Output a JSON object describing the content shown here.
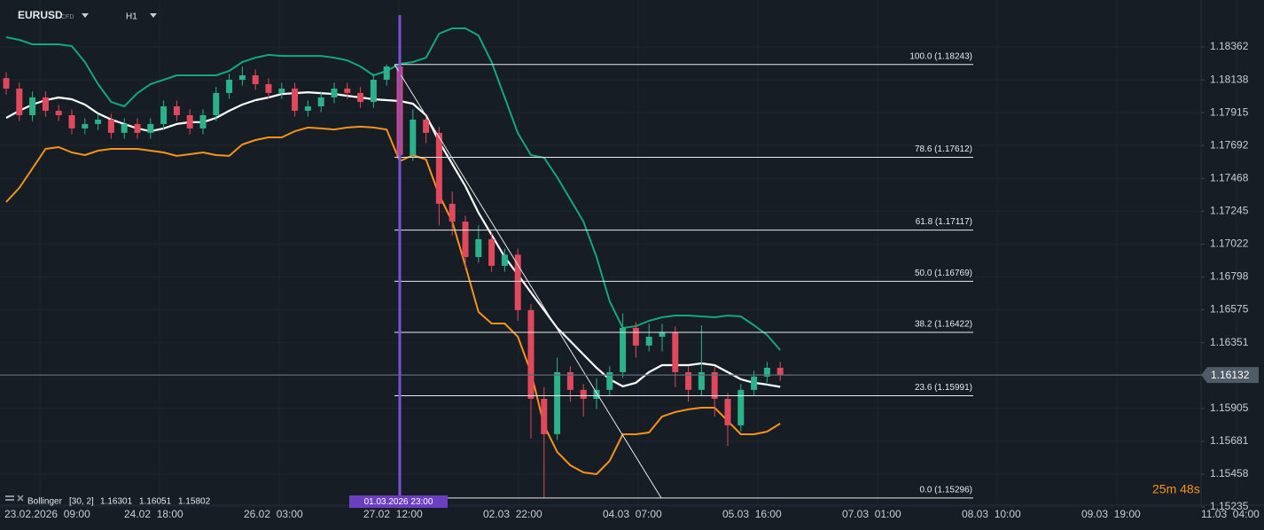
{
  "chart_data": {
    "type": "candlestick",
    "symbol": "EURUSD",
    "instrument_type": "CFD",
    "timeframe": "H1",
    "up_color": "#2bb28a",
    "down_color": "#e0485c",
    "open": [
      1.1815,
      1.18079,
      1.17898,
      1.18019,
      1.17928,
      1.17898,
      1.17808,
      1.17838,
      1.17868,
      1.17778,
      1.17838,
      1.17778,
      1.17838,
      1.17958,
      1.17898,
      1.17808,
      1.17898,
      1.18049,
      1.18139,
      1.18169,
      1.18109,
      1.18049,
      1.18079,
      1.17928,
      1.17958,
      1.18019,
      1.18079,
      1.18049,
      1.17988,
      1.18139,
      1.18229,
      1.17627,
      1.17868,
      1.17778,
      1.17296,
      1.17175,
      1.16934,
      1.17055,
      1.16874,
      1.1695,
      1.16573,
      1.1597,
      1.1573,
      1.16151,
      1.16031,
      1.1597,
      1.16031,
      1.16151,
      1.16452,
      1.16332,
      1.16392,
      1.16422,
      1.16151,
      1.16031,
      1.16151,
      1.1597,
      1.1579,
      1.16031,
      1.16121,
      1.16181
    ],
    "high": [
      1.1819,
      1.18119,
      1.18059,
      1.18059,
      1.17968,
      1.17938,
      1.17878,
      1.17908,
      1.17908,
      1.17878,
      1.17878,
      1.17878,
      1.17998,
      1.17998,
      1.17938,
      1.17938,
      1.18089,
      1.18179,
      1.18229,
      1.18209,
      1.18149,
      1.18119,
      1.18119,
      1.17998,
      1.18059,
      1.18119,
      1.18119,
      1.18089,
      1.18179,
      1.18243,
      1.18229,
      1.17938,
      1.17908,
      1.17818,
      1.1738,
      1.17215,
      1.1715,
      1.17095,
      1.1699,
      1.1699,
      1.16613,
      1.1605,
      1.1625,
      1.16191,
      1.16071,
      1.1611,
      1.16191,
      1.1655,
      1.16492,
      1.1648,
      1.1648,
      1.16462,
      1.16191,
      1.1647,
      1.16191,
      1.1601,
      1.16071,
      1.16161,
      1.16221,
      1.16221
    ],
    "low": [
      1.18039,
      1.17858,
      1.17858,
      1.17888,
      1.17858,
      1.17768,
      1.17768,
      1.17798,
      1.17738,
      1.17738,
      1.17738,
      1.17738,
      1.17798,
      1.17858,
      1.17768,
      1.17768,
      1.17858,
      1.18009,
      1.18099,
      1.18069,
      1.18009,
      1.18009,
      1.17888,
      1.17888,
      1.17918,
      1.17979,
      1.18009,
      1.17948,
      1.17948,
      1.18099,
      1.1755,
      1.17587,
      1.17708,
      1.1715,
      1.1708,
      1.1685,
      1.16894,
      1.16834,
      1.16834,
      1.165,
      1.157,
      1.15296,
      1.1569,
      1.1595,
      1.1585,
      1.159,
      1.15991,
      1.16111,
      1.1625,
      1.16292,
      1.16292,
      1.1605,
      1.1595,
      1.15991,
      1.1585,
      1.1565,
      1.1575,
      1.15991,
      1.16081,
      1.16092
    ],
    "close": [
      1.18079,
      1.17898,
      1.18019,
      1.17928,
      1.17898,
      1.17808,
      1.17838,
      1.17868,
      1.17778,
      1.17838,
      1.17778,
      1.17838,
      1.17958,
      1.17898,
      1.17808,
      1.17898,
      1.18049,
      1.18139,
      1.18169,
      1.18109,
      1.18049,
      1.18079,
      1.17928,
      1.17958,
      1.18019,
      1.18079,
      1.18049,
      1.17988,
      1.18139,
      1.18229,
      1.17627,
      1.17868,
      1.17778,
      1.17296,
      1.17175,
      1.16934,
      1.17055,
      1.16874,
      1.1695,
      1.16573,
      1.1597,
      1.1573,
      1.16151,
      1.16031,
      1.1597,
      1.16031,
      1.16151,
      1.16452,
      1.16332,
      1.16392,
      1.16422,
      1.16151,
      1.16031,
      1.16151,
      1.1597,
      1.1579,
      1.16031,
      1.16121,
      1.16181,
      1.16132
    ],
    "bollinger": {
      "name": "Bollinger",
      "params": "[30, 2]",
      "upper_color": "#14a77b",
      "middle_color": "#ffffff",
      "lower_color": "#f7931a",
      "upper": [
        1.18428,
        1.1841,
        1.1838,
        1.1838,
        1.1838,
        1.18368,
        1.18259,
        1.18109,
        1.17988,
        1.17958,
        1.18048,
        1.18109,
        1.18139,
        1.18169,
        1.18169,
        1.18169,
        1.18169,
        1.18199,
        1.18259,
        1.18289,
        1.18308,
        1.18301,
        1.18301,
        1.18301,
        1.18301,
        1.18289,
        1.18271,
        1.18229,
        1.18169,
        1.18199,
        1.18247,
        1.18259,
        1.18289,
        1.18452,
        1.18488,
        1.18488,
        1.1844,
        1.18259,
        1.18018,
        1.17777,
        1.17627,
        1.17609,
        1.17476,
        1.17326,
        1.17175,
        1.16934,
        1.16633,
        1.16452,
        1.16464,
        1.165,
        1.16524,
        1.16536,
        1.16536,
        1.1653,
        1.16524,
        1.16536,
        1.1653,
        1.1647,
        1.16404,
        1.16301
      ],
      "middle": [
        1.1788,
        1.17928,
        1.1797,
        1.18,
        1.18018,
        1.18006,
        1.1797,
        1.1791,
        1.17868,
        1.17838,
        1.17808,
        1.17789,
        1.17808,
        1.17838,
        1.1785,
        1.1785,
        1.1788,
        1.17928,
        1.1797,
        1.18,
        1.18018,
        1.18042,
        1.18048,
        1.18054,
        1.18048,
        1.18042,
        1.1803,
        1.18018,
        1.18006,
        1.18,
        1.17994,
        1.17976,
        1.17898,
        1.17717,
        1.17567,
        1.17416,
        1.17235,
        1.17085,
        1.16934,
        1.16814,
        1.16693,
        1.16573,
        1.16452,
        1.16362,
        1.16271,
        1.16181,
        1.16103,
        1.16055,
        1.16079,
        1.16151,
        1.16199,
        1.16199,
        1.16199,
        1.16211,
        1.16199,
        1.16151,
        1.16103,
        1.16079,
        1.16067,
        1.16051
      ],
      "lower": [
        1.17308,
        1.17404,
        1.17536,
        1.17669,
        1.17681,
        1.17645,
        1.17627,
        1.17657,
        1.17669,
        1.17669,
        1.17669,
        1.17657,
        1.17645,
        1.17621,
        1.17633,
        1.17645,
        1.17627,
        1.17621,
        1.17699,
        1.17729,
        1.17747,
        1.17747,
        1.17789,
        1.17814,
        1.17808,
        1.17801,
        1.17814,
        1.1782,
        1.17814,
        1.17801,
        1.17585,
        1.17627,
        1.17597,
        1.17356,
        1.17175,
        1.16874,
        1.16561,
        1.16482,
        1.16482,
        1.16392,
        1.16151,
        1.15789,
        1.15609,
        1.15518,
        1.1547,
        1.15458,
        1.15549,
        1.15729,
        1.15729,
        1.15741,
        1.1585,
        1.1588,
        1.15898,
        1.1591,
        1.1591,
        1.1582,
        1.15729,
        1.15729,
        1.15747,
        1.15802
      ]
    },
    "fibonacci": [
      {
        "value": 1.18243,
        "label": "100.0 (1.18243)"
      },
      {
        "value": 1.17612,
        "label": "78.6 (1.17612)"
      },
      {
        "value": 1.17117,
        "label": "61.8 (1.17117)"
      },
      {
        "value": 1.16769,
        "label": "50.0 (1.16769)"
      },
      {
        "value": 1.16422,
        "label": "38.2 (1.16422)"
      },
      {
        "value": 1.15991,
        "label": "23.6 (1.15991)"
      },
      {
        "value": 1.15296,
        "label": "0.0 (1.15296)"
      }
    ],
    "last_price": 1.16132,
    "marker_label": "01.03.2026 23:00",
    "countdown": "25m 48s",
    "x_labels": [
      "23.02.2026  09:00",
      "24.02  18:00",
      "26.02  03:00",
      "27.02  12:00",
      "02.03  22:00",
      "04.03  07:00",
      "05.03  16:00",
      "07.03  01:00",
      "08.03  10:00",
      "09.03  19:00",
      "11.03  04:00"
    ],
    "ylim": [
      1.15247,
      1.18681
    ],
    "yticks": [
      1.18362,
      1.18138,
      1.17915,
      1.17692,
      1.17468,
      1.17245,
      1.17022,
      1.16798,
      1.16575,
      1.16351,
      1.15905,
      1.15681,
      1.15458,
      1.15235
    ],
    "grid": true
  }
}
